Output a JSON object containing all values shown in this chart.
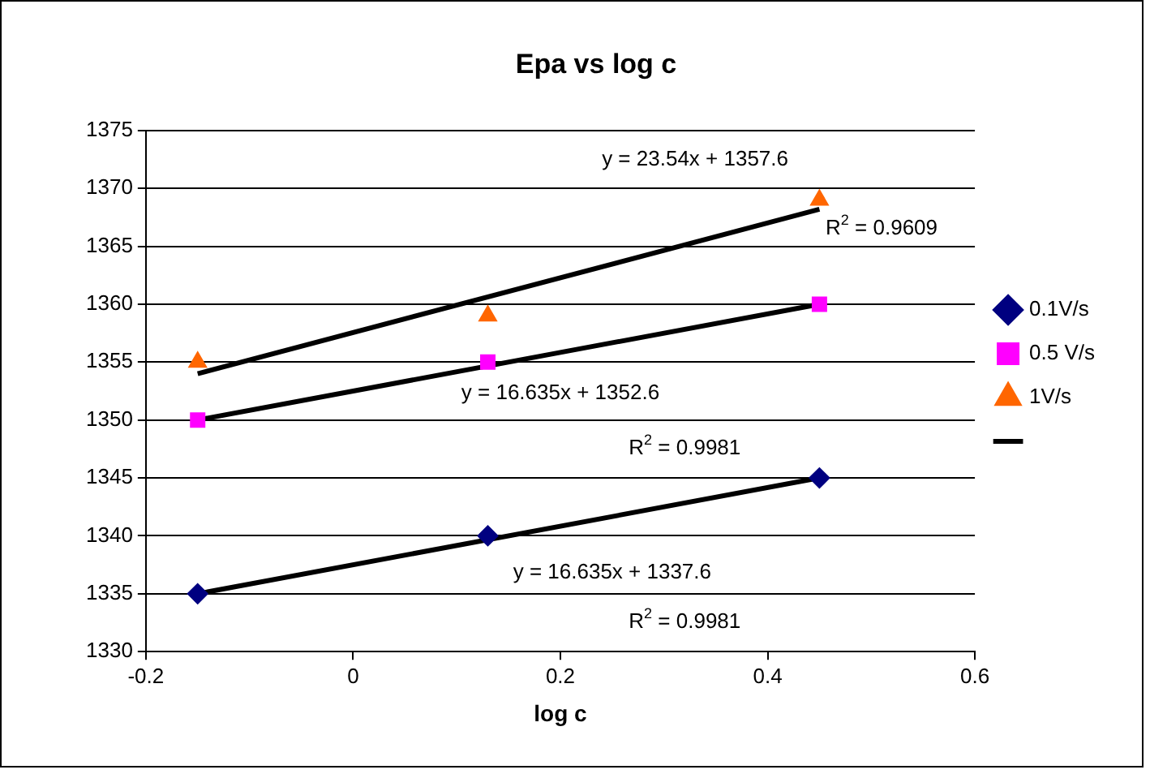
{
  "chart_data": {
    "type": "scatter",
    "title": "Epa vs log c",
    "xlabel": "log c",
    "xlim": [
      -0.2,
      0.6
    ],
    "xticks": [
      -0.2,
      0,
      0.2,
      0.4,
      0.6
    ],
    "ylim": [
      1330,
      1375
    ],
    "yticks": [
      1330,
      1335,
      1340,
      1345,
      1350,
      1355,
      1360,
      1365,
      1370,
      1375
    ],
    "grid": "y",
    "legend": "right",
    "series": [
      {
        "name": "0.1V/s",
        "color": "#000080",
        "marker": "diamond",
        "x": [
          -0.15,
          0.13,
          0.45
        ],
        "values": [
          1335,
          1340,
          1345
        ]
      },
      {
        "name": "0.5 V/s",
        "color": "#ff00ff",
        "marker": "square",
        "x": [
          -0.15,
          0.13,
          0.45
        ],
        "values": [
          1350,
          1355,
          1360
        ]
      },
      {
        "name": "1V/s",
        "color": "#ff6600",
        "marker": "triangle",
        "x": [
          -0.15,
          0.13,
          0.45
        ],
        "values": [
          1355,
          1359,
          1369
        ]
      },
      {
        "type": "line",
        "color": "#000000",
        "marker": "none",
        "x": [
          -0.15,
          0.45
        ],
        "values": [
          1354,
          1368.2
        ]
      },
      {
        "type": "line",
        "color": "#000000",
        "marker": "none",
        "x": [
          -0.15,
          0.45
        ],
        "values": [
          1350,
          1360
        ]
      },
      {
        "type": "line",
        "color": "#000000",
        "marker": "none",
        "x": [
          -0.15,
          0.45
        ],
        "values": [
          1335,
          1345
        ]
      }
    ],
    "annotations": [
      "y = 23.54x + 1357.6",
      "R$^{2}$ = 0.9609",
      "y = 16.635x + 1352.6",
      "R$^{2}$ = 0.9981",
      "y = 16.635x + 1337.6",
      "R$^{2}$ = 0.9981"
    ]
  }
}
